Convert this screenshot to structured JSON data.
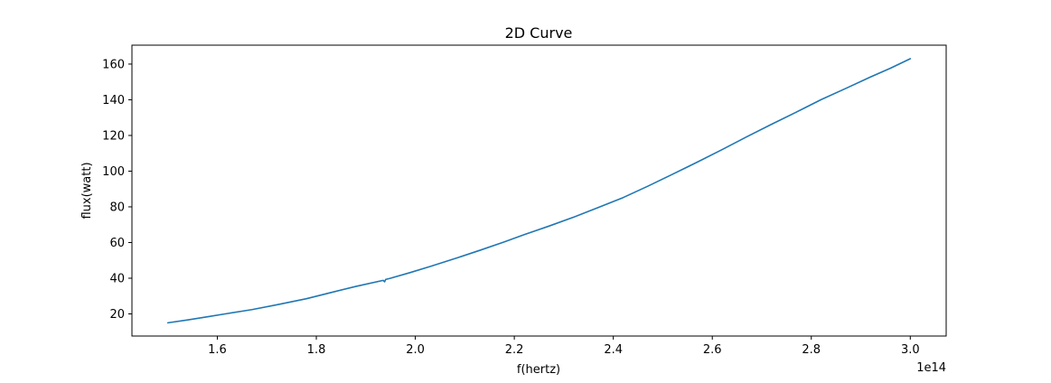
{
  "chart_data": {
    "type": "line",
    "title": "2D Curve",
    "xlabel": "f(hertz)",
    "ylabel": "flux(watt)",
    "x_offset_label": "1e14",
    "xlim": [
      1.4275,
      3.0725
    ],
    "ylim": [
      7.6,
      170.6
    ],
    "x_ticks": [
      1.6,
      1.8,
      2.0,
      2.2,
      2.4,
      2.6,
      2.8,
      3.0
    ],
    "x_tick_labels": [
      "1.6",
      "1.8",
      "2.0",
      "2.2",
      "2.4",
      "2.6",
      "2.8",
      "3.0"
    ],
    "y_ticks": [
      20,
      40,
      60,
      80,
      100,
      120,
      140,
      160
    ],
    "y_tick_labels": [
      "20",
      "40",
      "60",
      "80",
      "100",
      "120",
      "140",
      "160"
    ],
    "grid": false,
    "series": [
      {
        "color": "#1f77b4",
        "x": [
          1.5,
          1.54,
          1.58,
          1.62,
          1.67,
          1.72,
          1.78,
          1.83,
          1.88,
          1.935,
          1.938,
          1.94,
          1.95,
          1.99,
          2.03,
          2.08,
          2.13,
          2.18,
          2.22,
          2.27,
          2.32,
          2.37,
          2.42,
          2.47,
          2.52,
          2.57,
          2.62,
          2.67,
          2.72,
          2.77,
          2.82,
          2.87,
          2.92,
          2.96,
          3.0
        ],
        "y": [
          15.0,
          16.6,
          18.4,
          20.2,
          22.4,
          25.1,
          28.5,
          32.0,
          35.4,
          38.8,
          38.0,
          39.3,
          40.0,
          43.2,
          46.6,
          51.0,
          55.6,
          60.4,
          64.4,
          69.2,
          74.2,
          79.7,
          85.2,
          91.6,
          98.3,
          105.1,
          112.1,
          119.3,
          126.3,
          133.1,
          140.1,
          146.4,
          152.8,
          157.7,
          163.0
        ]
      }
    ]
  }
}
